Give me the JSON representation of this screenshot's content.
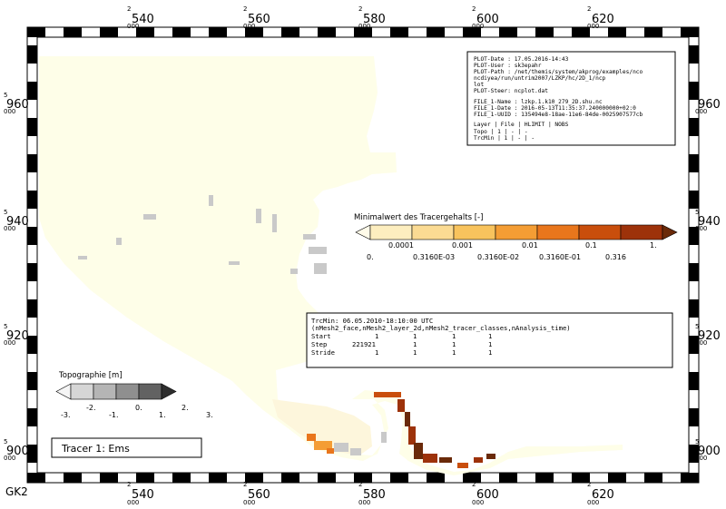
{
  "grid_label": "GK2",
  "axes": {
    "x_ticks": [
      {
        "top": "2",
        "main": "540",
        "bottom": "000"
      },
      {
        "top": "2",
        "main": "560",
        "bottom": "000"
      },
      {
        "top": "2",
        "main": "580",
        "bottom": "000"
      },
      {
        "top": "2",
        "main": "600",
        "bottom": "000"
      },
      {
        "top": "2",
        "main": "620",
        "bottom": "000"
      }
    ],
    "y_ticks": [
      {
        "top": "5",
        "main": "960",
        "bottom": "000"
      },
      {
        "top": "5",
        "main": "940",
        "bottom": "000"
      },
      {
        "top": "5",
        "main": "920",
        "bottom": "000"
      },
      {
        "top": "5",
        "main": "900",
        "bottom": "000"
      }
    ]
  },
  "info_box": {
    "plot_date": "PLOT-Date  : 17.05.2016-14:43",
    "plot_user": "PLOT-User  : sk3epahr",
    "plot_path_1": "PLOT-Path  : /net/themis/system/akprog/examples/nco",
    "plot_path_2": "             ncdiyea/run/untrim2007/LZKP/hc/2D_1/ncp",
    "plot_path_3": "             lot",
    "plot_steer": "PLOT-Steer: ncplot.dat",
    "file_name": "FILE_1-Name  : lzkp.1.k10_279_2D.shu.nc",
    "file_date": "FILE_1-Date  : 2016-05-13T11:35:37.240000000+02:0",
    "file_uuid": "FILE_1-UUID  : 135494e8-18ae-11e6-84de-0025907577cb",
    "table_head": "Layer  | File | HLIMIT | NOBS",
    "table_row_1": "Topo   |  1   |   -    |  -",
    "table_row_2": "TrcMin |  1   |   -    |  -"
  },
  "tracer_legend": {
    "title": "Minimalwert des Tracergehalts [-]",
    "colors": [
      "#fffbe9",
      "#fdeebf",
      "#fbdb93",
      "#f8c35d",
      "#f49d34",
      "#e9761c",
      "#c94e0c",
      "#9d320a",
      "#6a2a09"
    ],
    "top_labels": [
      "0.0001",
      "0.001",
      "0.01",
      "0.1",
      "1."
    ],
    "bottom_labels": [
      "0.",
      "0.3160E-03",
      "0.3160E-02",
      "0.3160E-01",
      "0.316"
    ]
  },
  "time_box": {
    "line_1": "TrcMin: 06.05.2010-18:10:00 UTC",
    "line_2": "(nMesh2_face,nMesh2_layer_2d,nMesh2_tracer_classes,nAnalysis_time)",
    "rows": [
      {
        "label": "Start",
        "values": [
          "1",
          "1",
          "1",
          "1"
        ]
      },
      {
        "label": "Step",
        "values": [
          "221921",
          "1",
          "1",
          "1"
        ]
      },
      {
        "label": "Stride",
        "values": [
          "1",
          "1",
          "1",
          "1"
        ]
      }
    ]
  },
  "topo_legend": {
    "title": "Topographie [m]",
    "colors": [
      "#f5f5f5",
      "#d6d6d6",
      "#b5b5b5",
      "#8f8f8f",
      "#626262",
      "#2e2e2e"
    ],
    "top_labels": [
      "-2.",
      "0.",
      "2."
    ],
    "bottom_labels": [
      "-3.",
      "-1.",
      "1.",
      "3."
    ]
  },
  "title_box": {
    "text": "Tracer 1: Ems"
  },
  "colors": {
    "water": "#fefee8",
    "land_gray": "#c8c8c8"
  }
}
